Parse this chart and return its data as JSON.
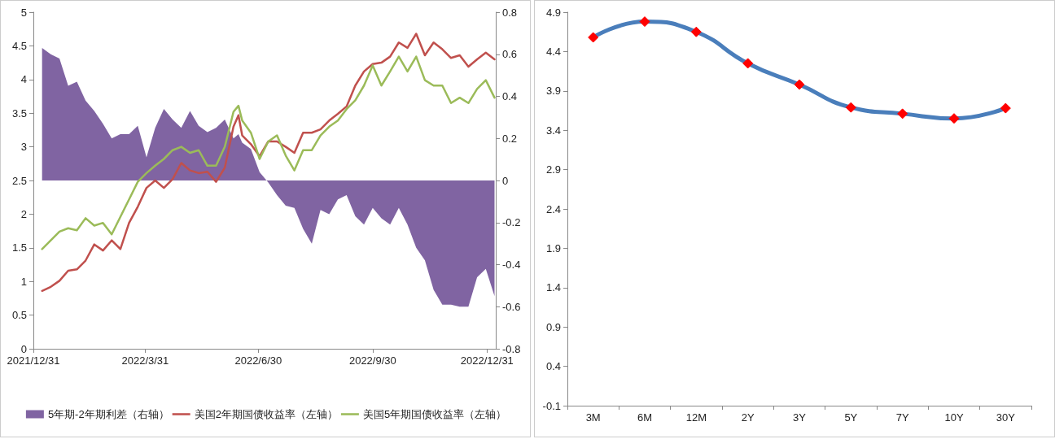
{
  "chart_data": [
    {
      "type": "line",
      "x": [
        "2022-01-07",
        "2022-01-14",
        "2022-01-21",
        "2022-01-28",
        "2022-02-04",
        "2022-02-11",
        "2022-02-18",
        "2022-02-25",
        "2022-03-04",
        "2022-03-11",
        "2022-03-18",
        "2022-03-25",
        "2022-04-01",
        "2022-04-08",
        "2022-04-15",
        "2022-04-22",
        "2022-04-29",
        "2022-05-06",
        "2022-05-13",
        "2022-05-20",
        "2022-05-27",
        "2022-06-03",
        "2022-06-10",
        "2022-06-14",
        "2022-06-17",
        "2022-06-24",
        "2022-07-01",
        "2022-07-08",
        "2022-07-15",
        "2022-07-22",
        "2022-07-29",
        "2022-08-05",
        "2022-08-12",
        "2022-08-19",
        "2022-08-26",
        "2022-09-02",
        "2022-09-09",
        "2022-09-16",
        "2022-09-23",
        "2022-09-30",
        "2022-10-07",
        "2022-10-14",
        "2022-10-21",
        "2022-10-28",
        "2022-11-04",
        "2022-11-11",
        "2022-11-18",
        "2022-11-25",
        "2022-12-02",
        "2022-12-09",
        "2022-12-16",
        "2022-12-23",
        "2022-12-30",
        "2023-01-06"
      ],
      "series": [
        {
          "name": "5年期-2年期利差（右轴）",
          "type": "area",
          "axis": "y2",
          "color": "#8064a2",
          "values": [
            0.63,
            0.6,
            0.58,
            0.45,
            0.47,
            0.38,
            0.33,
            0.27,
            0.2,
            0.22,
            0.22,
            0.26,
            0.11,
            0.25,
            0.34,
            0.29,
            0.25,
            0.33,
            0.26,
            0.23,
            0.25,
            0.29,
            0.2,
            0.22,
            0.18,
            0.15,
            0.04,
            -0.01,
            -0.07,
            -0.12,
            -0.13,
            -0.23,
            -0.3,
            -0.14,
            -0.16,
            -0.09,
            -0.07,
            -0.17,
            -0.21,
            -0.13,
            -0.18,
            -0.21,
            -0.13,
            -0.21,
            -0.32,
            -0.38,
            -0.52,
            -0.59,
            -0.59,
            -0.6,
            -0.6,
            -0.46,
            -0.42,
            -0.55
          ]
        },
        {
          "name": "美国2年期国债收益率（左轴）",
          "color": "#c0504d",
          "values": [
            0.86,
            0.92,
            1.01,
            1.16,
            1.18,
            1.31,
            1.55,
            1.46,
            1.61,
            1.48,
            1.87,
            2.11,
            2.39,
            2.5,
            2.39,
            2.52,
            2.76,
            2.65,
            2.61,
            2.63,
            2.48,
            2.69,
            3.3,
            3.47,
            3.17,
            3.04,
            2.86,
            3.08,
            3.08,
            3.0,
            2.91,
            3.21,
            3.21,
            3.26,
            3.39,
            3.49,
            3.6,
            3.91,
            4.12,
            4.23,
            4.25,
            4.34,
            4.55,
            4.47,
            4.68,
            4.36,
            4.55,
            4.45,
            4.32,
            4.36,
            4.19,
            4.3,
            4.4,
            4.3
          ]
        },
        {
          "name": "美国5年期国债收益率（左轴）",
          "color": "#9bbb59",
          "values": [
            1.48,
            1.61,
            1.74,
            1.79,
            1.76,
            1.94,
            1.83,
            1.87,
            1.7,
            1.96,
            2.22,
            2.48,
            2.61,
            2.72,
            2.82,
            2.95,
            3.0,
            2.91,
            2.95,
            2.72,
            2.72,
            3.0,
            3.52,
            3.61,
            3.39,
            3.21,
            2.82,
            3.08,
            3.17,
            2.87,
            2.65,
            2.95,
            2.95,
            3.17,
            3.3,
            3.39,
            3.56,
            3.69,
            3.91,
            4.21,
            3.91,
            4.12,
            4.34,
            4.12,
            4.34,
            3.99,
            3.91,
            3.91,
            3.65,
            3.73,
            3.65,
            3.86,
            3.99,
            3.73
          ]
        }
      ],
      "xlim": [
        "2021-12-31",
        "2023-01-07"
      ],
      "xticks": [
        {
          "value": "2021-12-31",
          "label": "2021/12/31"
        },
        {
          "value": "2022-03-31",
          "label": "2022/3/31"
        },
        {
          "value": "2022-06-30",
          "label": "2022/6/30"
        },
        {
          "value": "2022-09-30",
          "label": "2022/9/30"
        },
        {
          "value": "2022-12-31",
          "label": "2022/12/31"
        }
      ],
      "ylim": [
        0,
        5
      ],
      "yticks": [
        0,
        0.5,
        1,
        1.5,
        2,
        2.5,
        3,
        3.5,
        4,
        4.5,
        5
      ],
      "y2lim": [
        -0.8,
        0.8
      ],
      "y2ticks": [
        -0.8,
        -0.6,
        -0.4,
        -0.2,
        0,
        0.2,
        0.4,
        0.6,
        0.8
      ],
      "grid": false,
      "legend": "bottom",
      "marker": "none"
    },
    {
      "type": "line",
      "categories": [
        "3M",
        "6M",
        "12M",
        "2Y",
        "3Y",
        "5Y",
        "7Y",
        "10Y",
        "30Y"
      ],
      "series": [
        {
          "color": "#4a7ebb",
          "colors": [
            "#ff0000",
            "#ff0000",
            "#ff0000",
            "#ff0000",
            "#ff0000",
            "#ff0000",
            "#ff0000",
            "#ff0000",
            "#ff0000"
          ],
          "values": [
            4.58,
            4.78,
            4.65,
            4.25,
            3.98,
            3.69,
            3.61,
            3.55,
            3.68
          ]
        }
      ],
      "ylim": [
        -0.1,
        4.9
      ],
      "yticks": [
        -0.1,
        0.4,
        0.9,
        1.4,
        1.9,
        2.4,
        2.9,
        3.4,
        3.9,
        4.4,
        4.9
      ],
      "grid": false,
      "legend": false,
      "marker": "diamond"
    }
  ]
}
